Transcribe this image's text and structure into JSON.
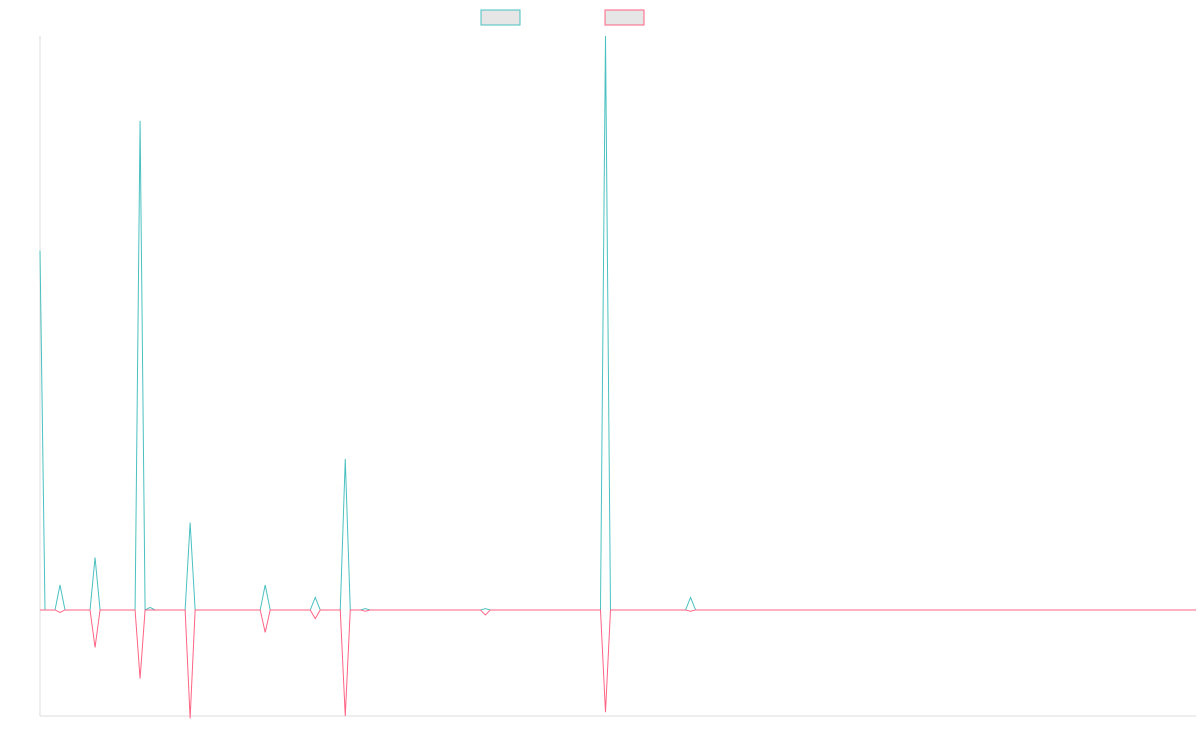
{
  "chart_data": {
    "type": "line",
    "title": "",
    "xlabel": "",
    "ylabel": "",
    "grid": false,
    "legend_position": "top-center",
    "x": [
      0,
      5,
      10,
      15,
      20,
      25,
      30,
      35,
      40,
      45,
      50,
      55,
      60,
      65,
      70,
      75,
      80,
      85,
      90,
      95,
      100,
      105,
      110,
      115,
      120,
      125,
      130,
      135,
      140,
      145,
      150,
      155,
      160,
      165,
      170,
      175,
      180,
      185,
      190,
      195,
      200,
      205,
      210,
      215,
      220,
      225,
      230,
      235,
      240,
      245,
      250,
      255,
      260,
      265,
      270,
      275,
      280,
      285,
      290,
      295,
      300,
      305,
      310,
      315,
      320,
      325,
      330,
      335,
      340,
      345,
      350,
      355,
      360,
      365,
      370,
      375,
      380,
      385,
      390,
      395,
      400,
      405,
      410,
      415,
      420,
      425,
      430,
      435,
      440,
      445,
      450,
      455,
      460,
      465,
      470,
      475,
      480,
      485,
      490,
      495,
      500,
      505,
      510,
      515,
      520,
      525,
      530,
      535,
      540,
      545,
      550,
      555,
      560,
      565,
      570,
      575,
      580,
      585,
      590,
      595,
      600,
      605,
      610,
      615,
      620,
      625,
      630,
      635,
      640,
      645,
      650,
      655,
      660,
      665,
      670,
      675,
      680,
      685,
      690,
      695,
      700,
      705,
      710,
      715,
      720,
      725,
      730,
      735,
      740,
      745,
      750,
      755,
      760,
      765,
      770,
      775,
      780,
      785,
      790,
      795,
      800,
      805,
      810,
      815,
      820,
      825,
      830,
      835,
      840,
      845,
      850,
      855,
      860,
      865,
      870,
      875,
      880,
      885,
      890,
      895,
      900,
      905,
      910,
      915,
      920,
      925,
      930,
      935,
      940,
      945,
      950,
      955,
      960,
      965,
      970,
      975,
      980,
      985,
      990,
      995,
      1000,
      1005,
      1010,
      1015,
      1020,
      1025,
      1030,
      1035,
      1040,
      1045,
      1050,
      1055,
      1060,
      1065,
      1070,
      1075,
      1080,
      1085,
      1090,
      1095,
      1100,
      1105,
      1110,
      1115,
      1120,
      1125,
      1130,
      1135,
      1140,
      1145,
      1150,
      1155
    ],
    "ylim": [
      -85,
      460
    ],
    "series": [
      {
        "color": "#4bc0c0",
        "values": [
          288,
          0,
          0,
          0,
          20,
          0,
          0,
          0,
          0,
          0,
          0,
          42,
          0,
          0,
          0,
          0,
          0,
          0,
          0,
          0,
          392,
          0,
          2,
          0,
          0,
          0,
          0,
          0,
          0,
          0,
          70,
          0,
          0,
          0,
          0,
          0,
          0,
          0,
          0,
          0,
          0,
          0,
          0,
          0,
          0,
          20,
          0,
          0,
          0,
          0,
          0,
          0,
          0,
          0,
          0,
          10,
          0,
          0,
          0,
          0,
          0,
          121,
          0,
          0,
          0,
          1,
          0,
          0,
          0,
          0,
          0,
          0,
          0,
          0,
          0,
          0,
          0,
          0,
          0,
          0,
          0,
          0,
          0,
          0,
          0,
          0,
          0,
          0,
          0,
          1,
          0,
          0,
          0,
          0,
          0,
          0,
          0,
          0,
          0,
          0,
          0,
          0,
          0,
          0,
          0,
          0,
          0,
          0,
          0,
          0,
          0,
          0,
          0,
          460,
          0,
          0,
          0,
          0,
          0,
          0,
          0,
          0,
          0,
          0,
          0,
          0,
          0,
          0,
          0,
          0,
          10,
          0,
          0,
          0,
          0,
          0,
          0,
          0,
          0,
          0,
          0,
          0,
          0,
          0,
          0,
          0,
          0,
          0,
          0,
          0,
          0,
          0,
          0,
          0,
          0,
          0,
          0,
          0,
          0,
          0,
          0,
          0,
          0,
          0,
          0,
          0,
          0,
          0,
          0,
          0,
          0,
          0,
          0,
          0,
          0,
          0,
          0,
          0,
          0,
          0,
          0,
          0,
          0,
          0,
          0,
          0,
          0,
          0,
          0,
          0,
          0,
          0,
          0,
          0,
          0,
          0,
          0,
          0,
          0,
          0,
          0,
          0,
          0,
          0,
          0,
          0,
          0,
          0,
          0,
          0,
          0,
          0,
          0,
          0,
          0,
          0,
          0,
          0,
          0,
          0,
          0,
          0,
          0,
          0,
          0,
          0,
          0,
          0,
          0,
          0,
          0,
          0
        ]
      },
      {
        "color": "#ff6384",
        "values": [
          0,
          0,
          0,
          0,
          -2,
          0,
          0,
          0,
          0,
          0,
          0,
          -30,
          0,
          0,
          0,
          0,
          0,
          0,
          0,
          0,
          -55,
          0,
          0,
          0,
          0,
          0,
          0,
          0,
          0,
          0,
          -87,
          0,
          0,
          0,
          0,
          0,
          0,
          0,
          0,
          0,
          0,
          0,
          0,
          0,
          0,
          -18,
          0,
          0,
          0,
          0,
          0,
          0,
          0,
          0,
          0,
          -7,
          0,
          0,
          0,
          0,
          0,
          -85,
          0,
          0,
          0,
          -1,
          0,
          0,
          0,
          0,
          0,
          0,
          0,
          0,
          0,
          0,
          0,
          0,
          0,
          0,
          0,
          0,
          0,
          0,
          0,
          0,
          0,
          0,
          0,
          -4,
          0,
          0,
          0,
          0,
          0,
          0,
          0,
          0,
          0,
          0,
          0,
          0,
          0,
          0,
          0,
          0,
          0,
          0,
          0,
          0,
          0,
          0,
          0,
          -82,
          0,
          0,
          0,
          0,
          0,
          0,
          0,
          0,
          0,
          0,
          0,
          0,
          0,
          0,
          0,
          0,
          -1,
          0,
          0,
          0,
          0,
          0,
          0,
          0,
          0,
          0,
          0,
          0,
          0,
          0,
          0,
          0,
          0,
          0,
          0,
          0,
          0,
          0,
          0,
          0,
          0,
          0,
          0,
          0,
          0,
          0,
          0,
          0,
          0,
          0,
          0,
          0,
          0,
          0,
          0,
          0,
          0,
          0,
          0,
          0,
          0,
          0,
          0,
          0,
          0,
          0,
          0,
          0,
          0,
          0,
          0,
          0,
          0,
          0,
          0,
          0,
          0,
          0,
          0,
          0,
          0,
          0,
          0,
          0,
          0,
          0,
          0,
          0,
          0,
          0,
          0,
          0,
          0,
          0,
          0,
          0,
          0,
          0,
          0,
          0,
          0,
          0,
          0,
          0,
          0,
          0,
          0,
          0,
          0,
          0,
          0,
          0,
          0,
          0,
          0,
          0,
          0,
          0
        ]
      }
    ]
  }
}
